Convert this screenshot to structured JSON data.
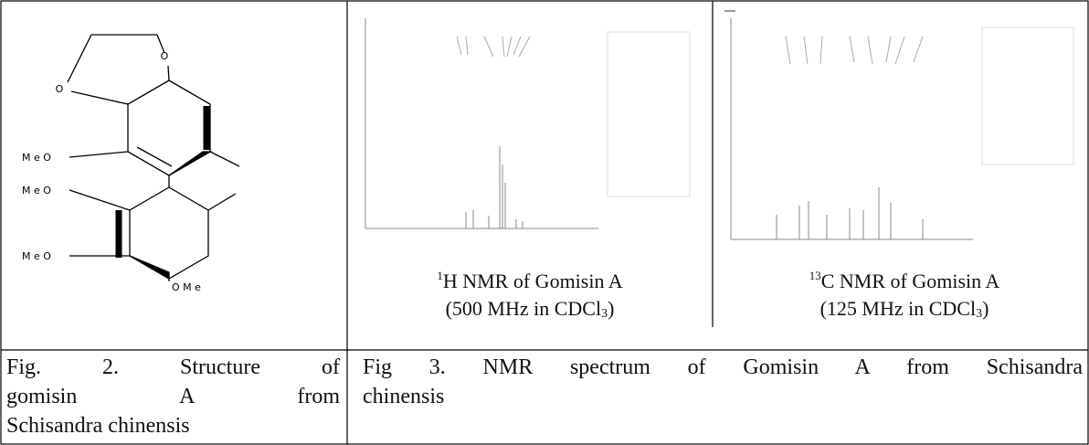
{
  "structure": {
    "labels": [
      "O",
      "O",
      "M e O",
      "M e O",
      "M e O",
      "O M e"
    ]
  },
  "nmr_panels": [
    {
      "sup": "1",
      "title": "H NMR of Gomisin A",
      "condition_open": "(500 MHz in CDCl",
      "condition_sub": "3",
      "condition_close": ")"
    },
    {
      "sup": "13",
      "title": "C NMR of Gomisin A",
      "condition_open": "(125 MHz in CDCl",
      "condition_sub": "3",
      "condition_close": ")"
    }
  ],
  "fig2_caption": [
    "Fig. 2. Structure of",
    "gomisin A from",
    "Schisandra chinensis"
  ],
  "fig3_caption": [
    "Fig 3. NMR spectrum of Gomisin A from Schisandra",
    "chinensis"
  ]
}
